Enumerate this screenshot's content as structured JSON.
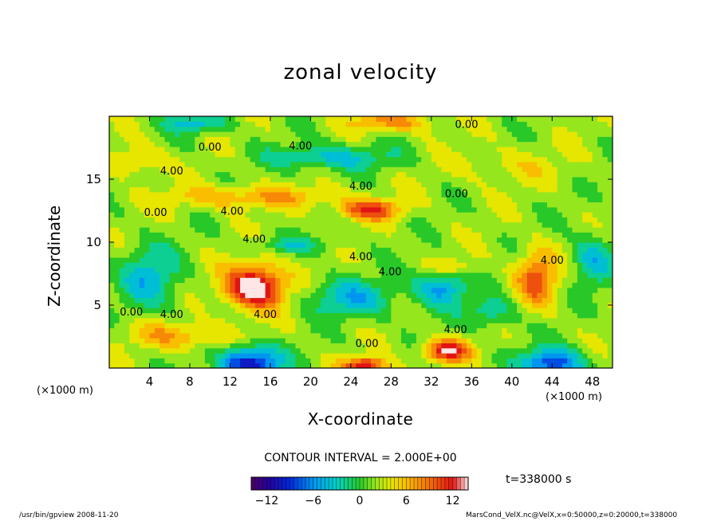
{
  "chart_data": {
    "type": "heatmap",
    "title": "zonal velocity",
    "xlabel": "X-coordinate",
    "ylabel": "Z-coordinate",
    "x_unit_label": "(×1000 m)",
    "xlim": [
      0,
      50
    ],
    "ylim": [
      0,
      20
    ],
    "x_ticks": [
      4,
      8,
      12,
      16,
      20,
      24,
      28,
      32,
      36,
      40,
      44,
      48
    ],
    "y_ticks": [
      5,
      10,
      15
    ],
    "contour_interval_text": "CONTOUR INTERVAL = 2.000E+00",
    "contour_interval": 2.0,
    "colorbar": {
      "range": [
        -14,
        14
      ],
      "ticks": [
        -12,
        -6,
        0,
        6,
        12
      ]
    },
    "time_label": "t=338000 s",
    "contour_labels": [
      {
        "text": "0.00",
        "x": 35.5,
        "z": 19.3
      },
      {
        "text": "0.00",
        "x": 10.0,
        "z": 17.5
      },
      {
        "text": "4.00",
        "x": 19.0,
        "z": 17.6
      },
      {
        "text": "4.00",
        "x": 6.2,
        "z": 15.6
      },
      {
        "text": "4.00",
        "x": 25.0,
        "z": 14.4
      },
      {
        "text": "0.00",
        "x": 34.5,
        "z": 13.8
      },
      {
        "text": "0.00",
        "x": 4.6,
        "z": 12.3
      },
      {
        "text": "4.00",
        "x": 12.2,
        "z": 12.4
      },
      {
        "text": "4.00",
        "x": 14.4,
        "z": 10.2
      },
      {
        "text": "4.00",
        "x": 25.0,
        "z": 8.8
      },
      {
        "text": "4.00",
        "x": 27.9,
        "z": 7.6
      },
      {
        "text": "4.00",
        "x": 44.0,
        "z": 8.5
      },
      {
        "text": "0.00",
        "x": 2.2,
        "z": 4.4
      },
      {
        "text": "4.00",
        "x": 6.2,
        "z": 4.2
      },
      {
        "text": "4.00",
        "x": 15.5,
        "z": 4.2
      },
      {
        "text": "4.00",
        "x": 34.4,
        "z": 3.0
      },
      {
        "text": "0.00",
        "x": 25.6,
        "z": 1.9
      }
    ],
    "field_features": [
      {
        "x": 14.5,
        "z": 6.5,
        "sx": 3.0,
        "sz": 1.7,
        "u": 14
      },
      {
        "x": 26,
        "z": 12.6,
        "sx": 3.0,
        "sz": 0.8,
        "u": 9
      },
      {
        "x": 14,
        "z": 13.6,
        "sx": 9.0,
        "sz": 0.9,
        "u": 5
      },
      {
        "x": 33.5,
        "z": 1.4,
        "sx": 2.2,
        "sz": 0.9,
        "u": 11
      },
      {
        "x": 25.5,
        "z": 0.2,
        "sx": 2.2,
        "sz": 0.7,
        "u": 11
      },
      {
        "x": 42.5,
        "z": 7.2,
        "sx": 2.0,
        "sz": 2.2,
        "u": 8
      },
      {
        "x": 34,
        "z": 8.0,
        "sx": 2.5,
        "sz": 0.8,
        "u": 4
      },
      {
        "x": 28,
        "z": 19.6,
        "sx": 4,
        "sz": 0.8,
        "u": 6
      },
      {
        "x": 7,
        "z": 2.6,
        "sx": 5.0,
        "sz": 1.1,
        "u": 5
      },
      {
        "x": 14,
        "z": 0.4,
        "sx": 3.0,
        "sz": 1.4,
        "u": -13
      },
      {
        "x": 44,
        "z": 0.4,
        "sx": 3.0,
        "sz": 1.2,
        "u": -11
      },
      {
        "x": 33,
        "z": 6.5,
        "sx": 2.5,
        "sz": 1.5,
        "u": -8
      },
      {
        "x": 24,
        "z": 5.6,
        "sx": 4.5,
        "sz": 1.5,
        "u": -6
      },
      {
        "x": 4,
        "z": 7.2,
        "sx": 3.0,
        "sz": 2.5,
        "u": -6
      },
      {
        "x": 22,
        "z": 16.8,
        "sx": 6,
        "sz": 1.0,
        "u": -6
      },
      {
        "x": 8.5,
        "z": 19.5,
        "sx": 3.0,
        "sz": 0.8,
        "u": -6
      },
      {
        "x": 48,
        "z": 8.6,
        "sx": 2.0,
        "sz": 2.0,
        "u": -6
      },
      {
        "x": 18,
        "z": 9.8,
        "sx": 4,
        "sz": 0.6,
        "u": -4
      },
      {
        "x": 38,
        "z": 4.5,
        "sx": 2.5,
        "sz": 1.2,
        "u": -5
      },
      {
        "x": 3,
        "z": 16.5,
        "sx": 2.5,
        "sz": 1.2,
        "u": 4
      },
      {
        "x": 40,
        "z": 16.0,
        "sx": 6,
        "sz": 1.5,
        "u": 2
      }
    ]
  },
  "footer": {
    "left": "/usr/bin/gpview  2008-11-20",
    "right": "MarsCond_VelX.nc@VelX,x=0:50000,z=0:20000,t=338000"
  }
}
